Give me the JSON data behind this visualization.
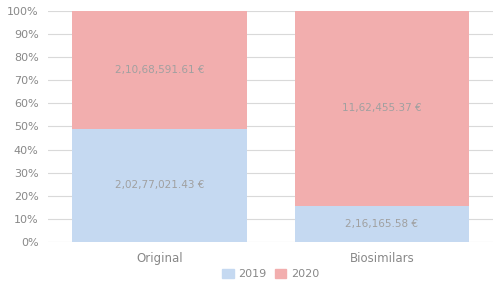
{
  "categories": [
    "Original",
    "Biosimilars"
  ],
  "values_2019": [
    20277021.43,
    216165.58
  ],
  "values_2020": [
    21068591.61,
    1162455.37
  ],
  "labels_2019": [
    "2,02,77,021.43 €",
    "2,16,165.58 €"
  ],
  "labels_2020": [
    "2,10,68,591.61 €",
    "11,62,455.37 €"
  ],
  "color_2019": "#c5d9f1",
  "color_2020": "#f2aeae",
  "yticks": [
    0,
    0.1,
    0.2,
    0.3,
    0.4,
    0.5,
    0.6,
    0.7,
    0.8,
    0.9,
    1.0
  ],
  "ytick_labels": [
    "0%",
    "10%",
    "20%",
    "30%",
    "40%",
    "50%",
    "60%",
    "70%",
    "80%",
    "90%",
    "100%"
  ],
  "legend_2019": "2019",
  "legend_2020": "2020",
  "bar_width": 0.55,
  "x_positions": [
    0.3,
    1.0
  ],
  "background_color": "#ffffff",
  "grid_color": "#d9d9d9",
  "text_color": "#a0a0a0",
  "label_fontsize": 7.5,
  "tick_fontsize": 8,
  "tick_color": "#888888"
}
